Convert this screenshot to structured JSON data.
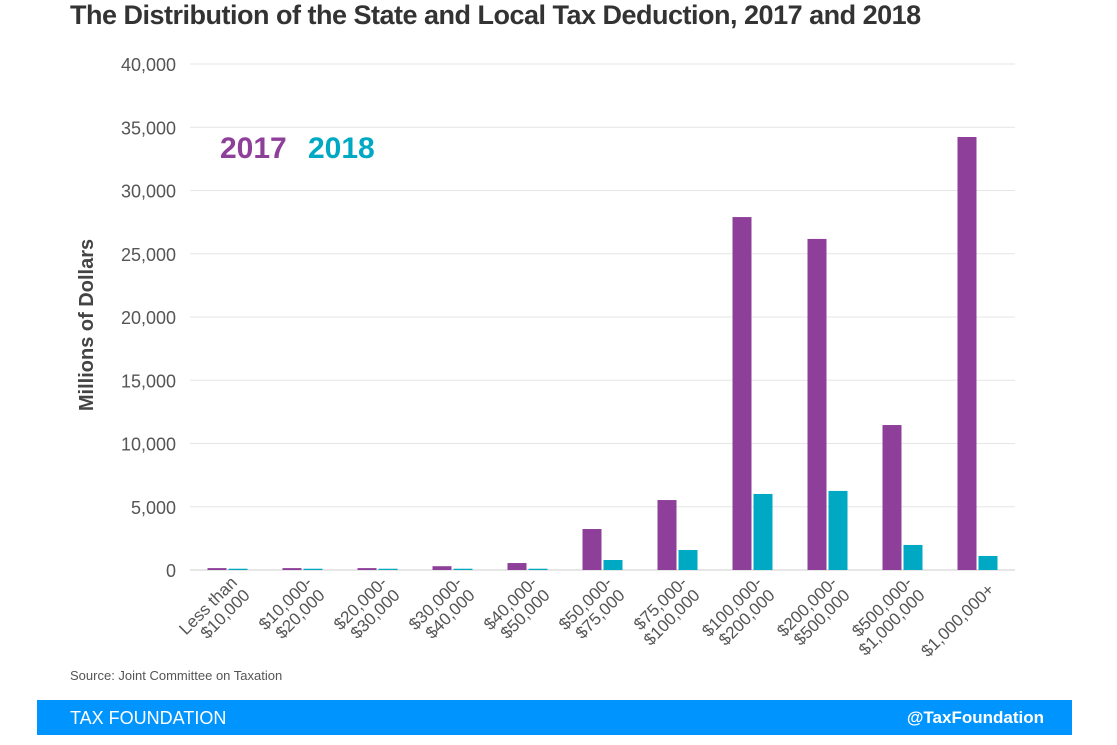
{
  "chart_data": {
    "type": "bar",
    "title": "The Distribution of the State and Local Tax Deduction, 2017 and 2018",
    "ylabel": "Millions of Dollars",
    "xlabel": "",
    "ylim": [
      0,
      40000
    ],
    "yticks": [
      0,
      5000,
      10000,
      15000,
      20000,
      25000,
      30000,
      35000,
      40000
    ],
    "ytick_labels": [
      "0",
      "5,000",
      "10,000",
      "15,000",
      "20,000",
      "25,000",
      "30,000",
      "35,000",
      "40,000"
    ],
    "grid": true,
    "legend_placement": "top-left",
    "categories": [
      [
        "Less than",
        "$10,000"
      ],
      [
        "$10,000-",
        "$20,000"
      ],
      [
        "$20,000-",
        "$30,000"
      ],
      [
        "$30,000-",
        "$40,000"
      ],
      [
        "$40,000-",
        "$50,000"
      ],
      [
        "$50,000-",
        "$75,000"
      ],
      [
        "$75,000-",
        "$100,000"
      ],
      [
        "$100,000-",
        "$200,000"
      ],
      [
        "$200,000-",
        "$500,000"
      ],
      [
        "$500,000-",
        "$1,000,000"
      ],
      [
        "$1,000,000+"
      ]
    ],
    "series": [
      {
        "name": "2017",
        "color": "#8e3f9a",
        "values": [
          150,
          150,
          150,
          300,
          550,
          3240,
          5530,
          27900,
          26170,
          11460,
          34230
        ]
      },
      {
        "name": "2018",
        "color": "#00a9c3",
        "values": [
          100,
          100,
          100,
          100,
          100,
          790,
          1580,
          6010,
          6250,
          1980,
          1110
        ]
      }
    ]
  },
  "source": "Source: Joint Committee on Taxation",
  "footer": {
    "brand": "TAX FOUNDATION",
    "handle": "@TaxFoundation",
    "color": "#0094ff"
  }
}
